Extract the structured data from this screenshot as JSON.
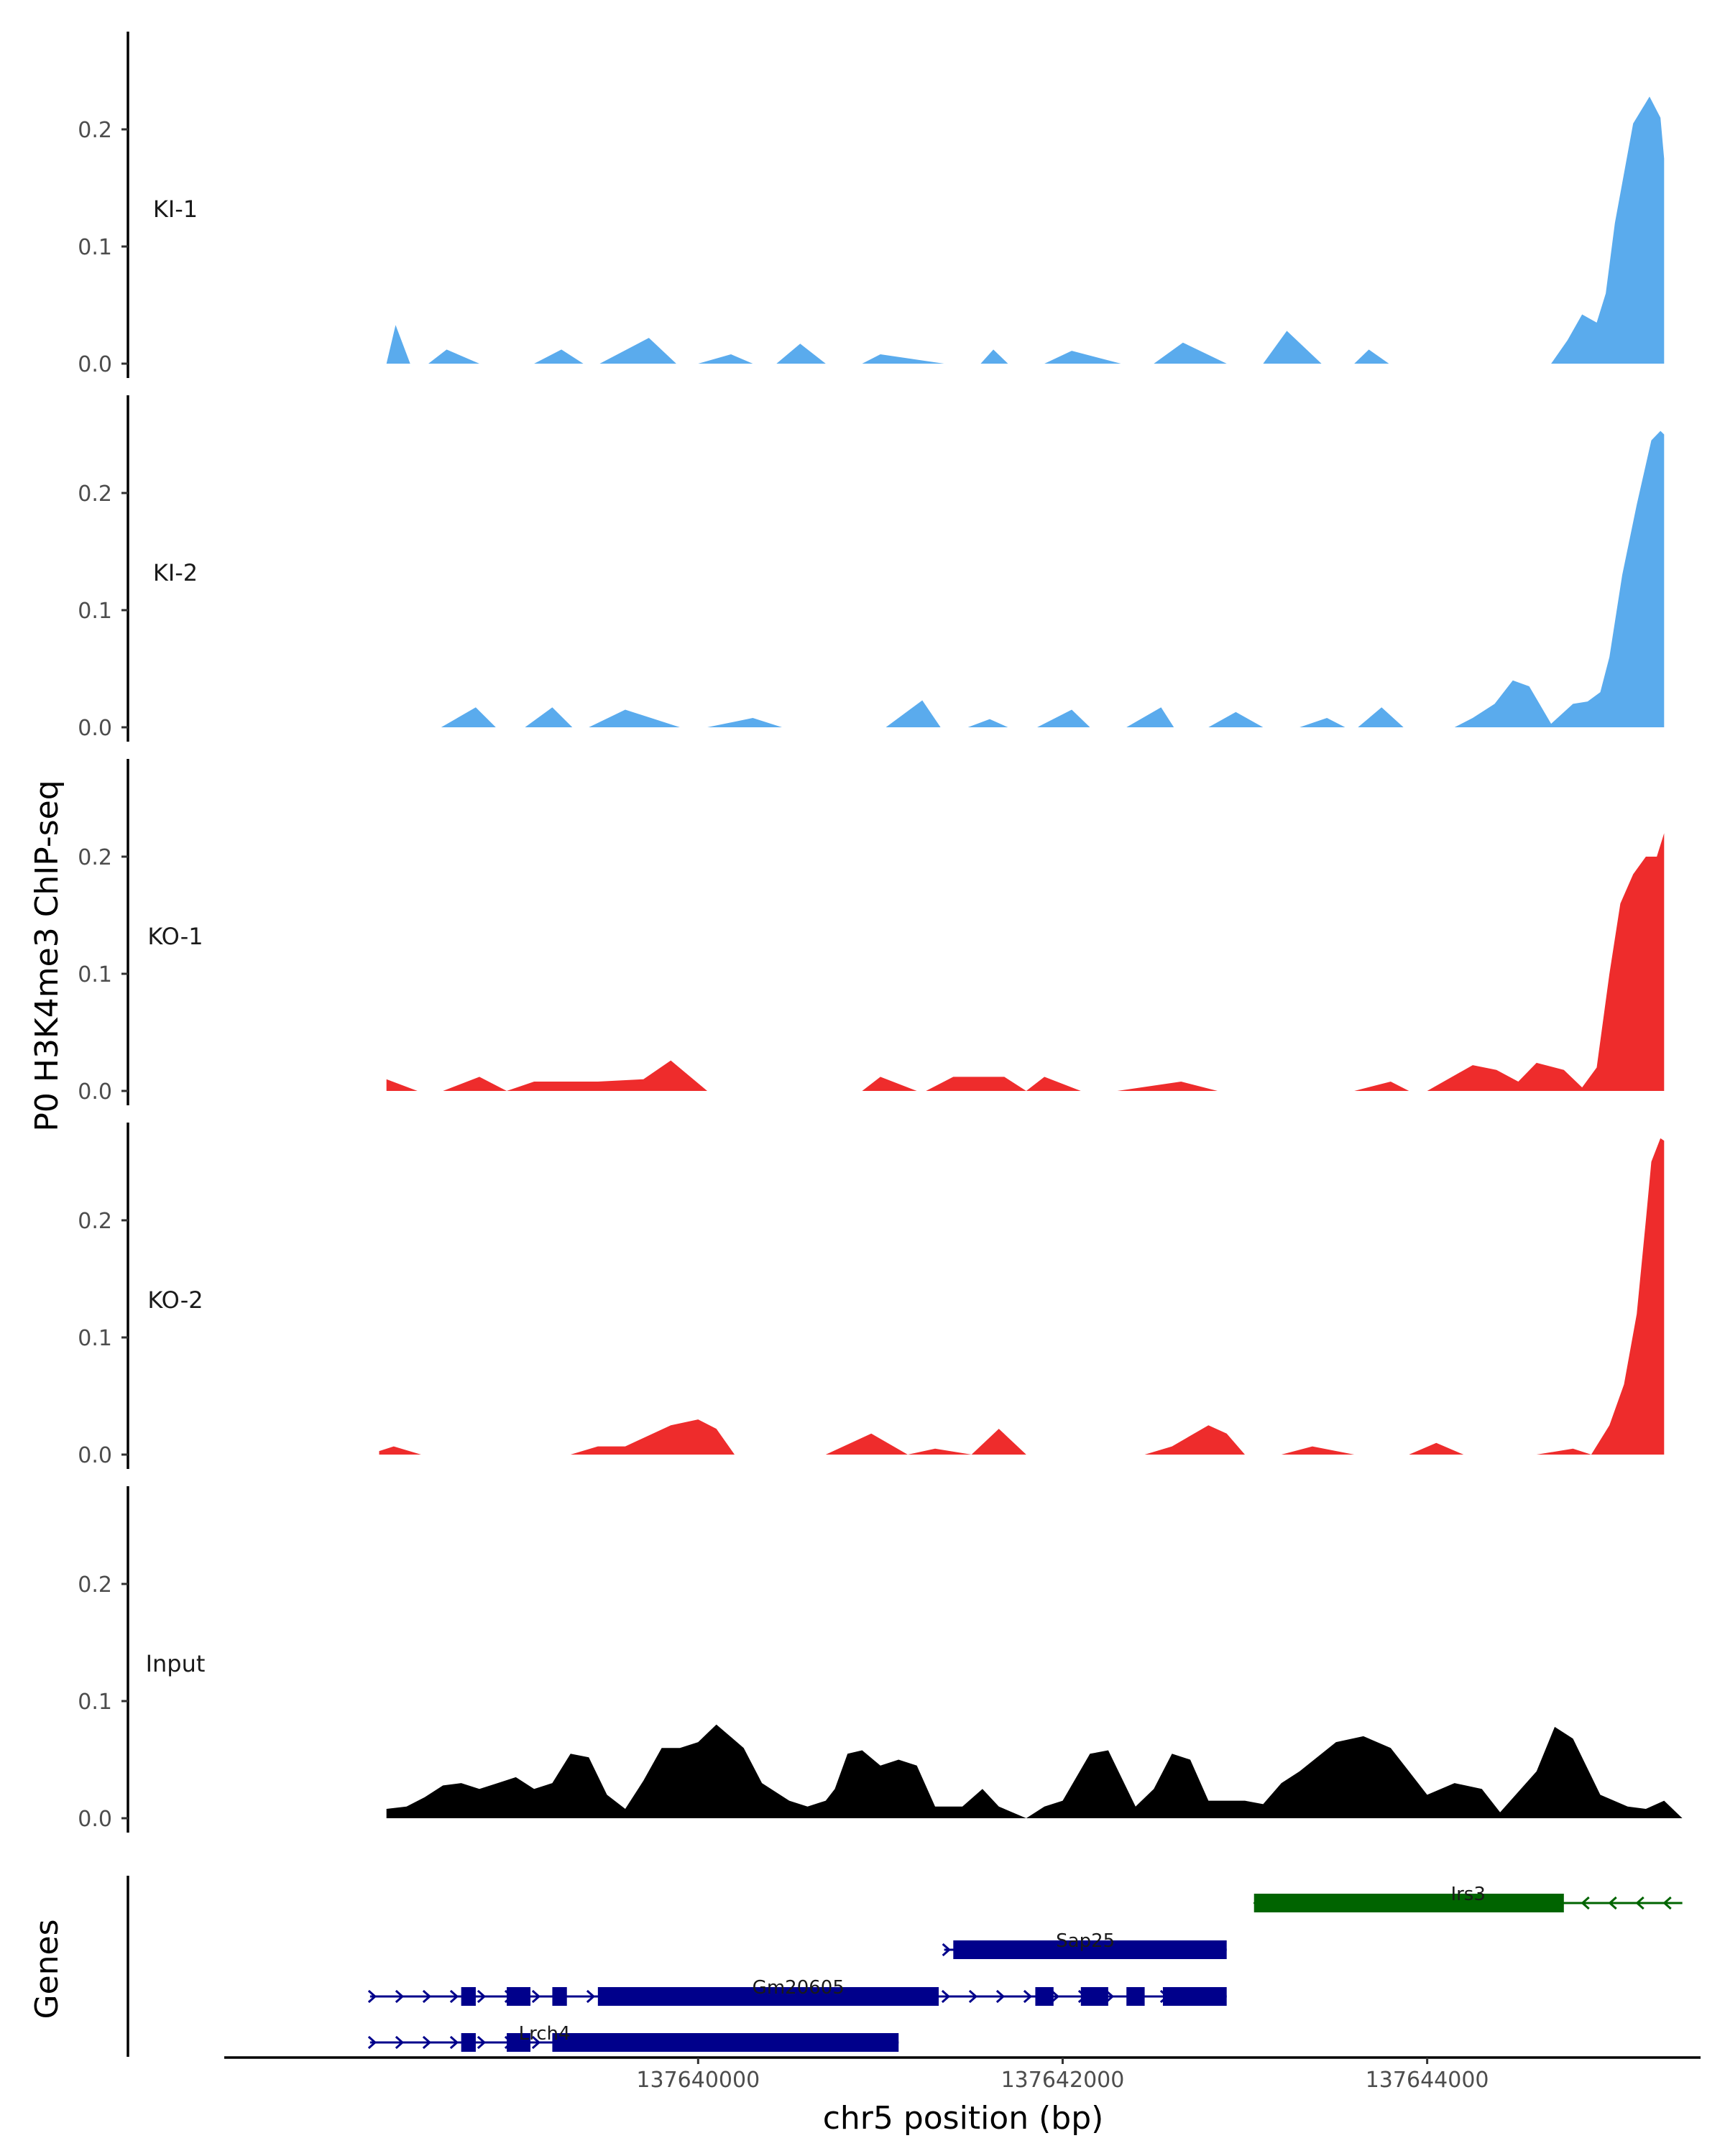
{
  "chart_data": {
    "type": "area",
    "x_range": [
      137637400,
      137645500
    ],
    "y_range": [
      0,
      0.28
    ],
    "ylabel": "P0 H3K4me3 ChIP-seq",
    "xlabel": "chr5 position (bp)",
    "genes_label": "Genes",
    "y_ticks": [
      {
        "value": 0.0,
        "label": "0.0"
      },
      {
        "value": 0.1,
        "label": "0.1"
      },
      {
        "value": 0.2,
        "label": "0.2"
      }
    ],
    "x_ticks": [
      {
        "value": 137640000,
        "label": "137640000"
      },
      {
        "value": 137642000,
        "label": "137642000"
      },
      {
        "value": 137644000,
        "label": "137644000"
      }
    ],
    "colors": {
      "KI": "#5aabed",
      "KO": "#ee2c2c",
      "Input": "#000000",
      "gene_minus": "#006400",
      "gene_plus": "#00008b"
    },
    "tracks": [
      {
        "name": "KI-1",
        "color": "#5aabed",
        "x": [
          137638290,
          137638340,
          137638420,
          137638520,
          137638620,
          137638800,
          137639100,
          137639250,
          137639370,
          137639460,
          137639730,
          137639880,
          137640000,
          137640180,
          137640300,
          137640430,
          137640560,
          137640700,
          137640900,
          137641000,
          137641350,
          137641550,
          137641620,
          137641700,
          137641900,
          137642050,
          137642320,
          137642500,
          137642660,
          137642900,
          137643100,
          137643230,
          137643420,
          137643600,
          137643680,
          137643790,
          137643870,
          137644080,
          137644100,
          137644250,
          137644310,
          137644370,
          137644450,
          137644680,
          137644770,
          137644850,
          137644930,
          137644980,
          137645030,
          137645130,
          137645220,
          137645280,
          137645300
        ],
        "y": [
          0.0,
          0.033,
          0.0,
          0.0,
          0.012,
          0.0,
          0.0,
          0.012,
          0.0,
          0.0,
          0.022,
          0.0,
          0.0,
          0.008,
          0.0,
          0.0,
          0.017,
          0.0,
          0.0,
          0.008,
          0.0,
          0.0,
          0.012,
          0.0,
          0.0,
          0.011,
          0.0,
          0.0,
          0.018,
          0.0,
          0.0,
          0.028,
          0.0,
          0.0,
          0.012,
          0.0,
          0.0,
          0.0,
          0.0,
          0.0,
          0.0,
          0.0,
          0.0,
          0.0,
          0.02,
          0.042,
          0.035,
          0.06,
          0.12,
          0.205,
          0.228,
          0.21,
          0.175
        ]
      },
      {
        "name": "KI-2",
        "color": "#5aabed",
        "x": [
          137637700,
          137638590,
          137638780,
          137638890,
          137639050,
          137639200,
          137639310,
          137639400,
          137639600,
          137639900,
          137640050,
          137640300,
          137640460,
          137640600,
          137641030,
          137641230,
          137641330,
          137641480,
          137641600,
          137641700,
          137641860,
          137642050,
          137642150,
          137642350,
          137642540,
          137642610,
          137642800,
          137642950,
          137643100,
          137643300,
          137643450,
          137643550,
          137643620,
          137643750,
          137643870,
          137644150,
          137644250,
          137644370,
          137644470,
          137644560,
          137644680,
          137644800,
          137644880,
          137644950,
          137645000,
          137645070,
          137645150,
          137645230,
          137645280,
          137645300
        ],
        "y": [
          0.0,
          0.0,
          0.017,
          0.0,
          0.0,
          0.017,
          0.0,
          0.0,
          0.015,
          0.0,
          0.0,
          0.008,
          0.0,
          0.0,
          0.0,
          0.023,
          0.0,
          0.0,
          0.007,
          0.0,
          0.0,
          0.015,
          0.0,
          0.0,
          0.017,
          0.0,
          0.0,
          0.013,
          0.0,
          0.0,
          0.008,
          0.0,
          0.0,
          0.017,
          0.0,
          0.0,
          0.008,
          0.02,
          0.04,
          0.035,
          0.003,
          0.02,
          0.022,
          0.03,
          0.06,
          0.13,
          0.19,
          0.245,
          0.253,
          0.25
        ]
      },
      {
        "name": "KO-1",
        "color": "#ee2c2c",
        "x": [
          137638290,
          137638460,
          137638600,
          137638800,
          137638950,
          137639100,
          137639450,
          137639700,
          137639850,
          137640050,
          137640200,
          137640300,
          137640430,
          137640600,
          137640900,
          137641000,
          137641200,
          137641250,
          137641400,
          137641680,
          137641800,
          137641900,
          137642100,
          137642300,
          137642650,
          137642850,
          137643050,
          137643250,
          137643600,
          137643800,
          137643900,
          137644000,
          137644250,
          137644380,
          137644500,
          137644600,
          137644750,
          137644850,
          137644930,
          137645000,
          137645060,
          137645130,
          137645200,
          137645260,
          137645300
        ],
        "y": [
          0.01,
          0.0,
          0.0,
          0.012,
          0.0,
          0.008,
          0.008,
          0.01,
          0.026,
          0.0,
          0.0,
          0.0,
          0.0,
          0.0,
          0.0,
          0.012,
          0.0,
          0.0,
          0.012,
          0.012,
          0.0,
          0.012,
          0.0,
          0.0,
          0.008,
          0.0,
          0.0,
          0.0,
          0.0,
          0.008,
          0.0,
          0.0,
          0.022,
          0.018,
          0.008,
          0.024,
          0.018,
          0.003,
          0.02,
          0.1,
          0.16,
          0.185,
          0.2,
          0.2,
          0.22
        ]
      },
      {
        "name": "KO-2",
        "color": "#ee2c2c",
        "x": [
          137638250,
          137638330,
          137638480,
          137638750,
          137639000,
          137639300,
          137639450,
          137639600,
          137639850,
          137640000,
          137640100,
          137640200,
          137640350,
          137640700,
          137640950,
          137641150,
          137641300,
          137641500,
          137641650,
          137641800,
          137642450,
          137642600,
          137642800,
          137642900,
          137643000,
          137643200,
          137643370,
          137643600,
          137643800,
          137643900,
          137644050,
          137644200,
          137644400,
          137644600,
          137644800,
          137644900,
          137645000,
          137645080,
          137645150,
          137645200,
          137645230,
          137645280,
          137645300
        ],
        "y": [
          0.003,
          0.007,
          0.0,
          0.0,
          0.0,
          0.0,
          0.007,
          0.007,
          0.025,
          0.03,
          0.022,
          0.0,
          0.0,
          0.0,
          0.018,
          0.0,
          0.005,
          0.0,
          0.022,
          0.0,
          0.0,
          0.007,
          0.025,
          0.018,
          0.0,
          0.0,
          0.007,
          0.0,
          0.0,
          0.0,
          0.01,
          0.0,
          0.0,
          0.0,
          0.005,
          0.0,
          0.025,
          0.06,
          0.12,
          0.2,
          0.25,
          0.27,
          0.268
        ]
      },
      {
        "name": "Input",
        "color": "#000000",
        "x": [
          137638290,
          137638400,
          137638500,
          137638600,
          137638700,
          137638800,
          137638900,
          137639000,
          137639100,
          137639200,
          137639300,
          137639400,
          137639500,
          137639600,
          137639700,
          137639800,
          137639900,
          137640000,
          137640100,
          137640250,
          137640350,
          137640500,
          137640600,
          137640700,
          137640750,
          137640820,
          137640900,
          137641000,
          137641100,
          137641200,
          137641300,
          137641450,
          137641560,
          137641650,
          137641800,
          137641900,
          137642000,
          137642150,
          137642250,
          137642400,
          137642500,
          137642600,
          137642700,
          137642800,
          137642900,
          137643000,
          137643100,
          137643200,
          137643300,
          137643500,
          137643650,
          137643800,
          137643900,
          137644000,
          137644150,
          137644300,
          137644400,
          137644600,
          137644700,
          137644800,
          137644950,
          137645100,
          137645200,
          137645300,
          137645400
        ],
        "y": [
          0.008,
          0.01,
          0.018,
          0.028,
          0.03,
          0.025,
          0.03,
          0.035,
          0.025,
          0.03,
          0.055,
          0.052,
          0.02,
          0.008,
          0.032,
          0.06,
          0.06,
          0.065,
          0.08,
          0.06,
          0.03,
          0.015,
          0.01,
          0.015,
          0.025,
          0.055,
          0.058,
          0.045,
          0.05,
          0.045,
          0.01,
          0.01,
          0.025,
          0.01,
          0.0,
          0.01,
          0.015,
          0.055,
          0.058,
          0.01,
          0.025,
          0.055,
          0.05,
          0.015,
          0.015,
          0.015,
          0.012,
          0.03,
          0.04,
          0.065,
          0.07,
          0.06,
          0.04,
          0.02,
          0.03,
          0.025,
          0.005,
          0.04,
          0.078,
          0.068,
          0.02,
          0.01,
          0.008,
          0.015,
          0.0
        ]
      }
    ],
    "genes": {
      "minus": [
        {
          "name": "Irs3",
          "start": 137643050,
          "end": 137645400,
          "exons": [
            [
              137643050,
              137644750
            ]
          ]
        }
      ],
      "plus": [
        {
          "name": "Sap25",
          "start": 137641350,
          "end": 137642900,
          "exons": [
            [
              137641400,
              137642900
            ]
          ]
        },
        {
          "name": "Gm20605",
          "start": 137638200,
          "end": 137642900,
          "exons": [
            [
              137638700,
              137638780
            ],
            [
              137638950,
              137639080
            ],
            [
              137639200,
              137639280
            ],
            [
              137639450,
              137641320
            ],
            [
              137641850,
              137641950
            ],
            [
              137642100,
              137642250
            ],
            [
              137642350,
              137642450
            ],
            [
              137642550,
              137642900
            ]
          ]
        },
        {
          "name": "Lrch4",
          "start": 137638200,
          "end": 137641100,
          "exons": [
            [
              137638700,
              137638780
            ],
            [
              137638950,
              137639080
            ],
            [
              137639200,
              137641100
            ]
          ]
        }
      ]
    }
  }
}
